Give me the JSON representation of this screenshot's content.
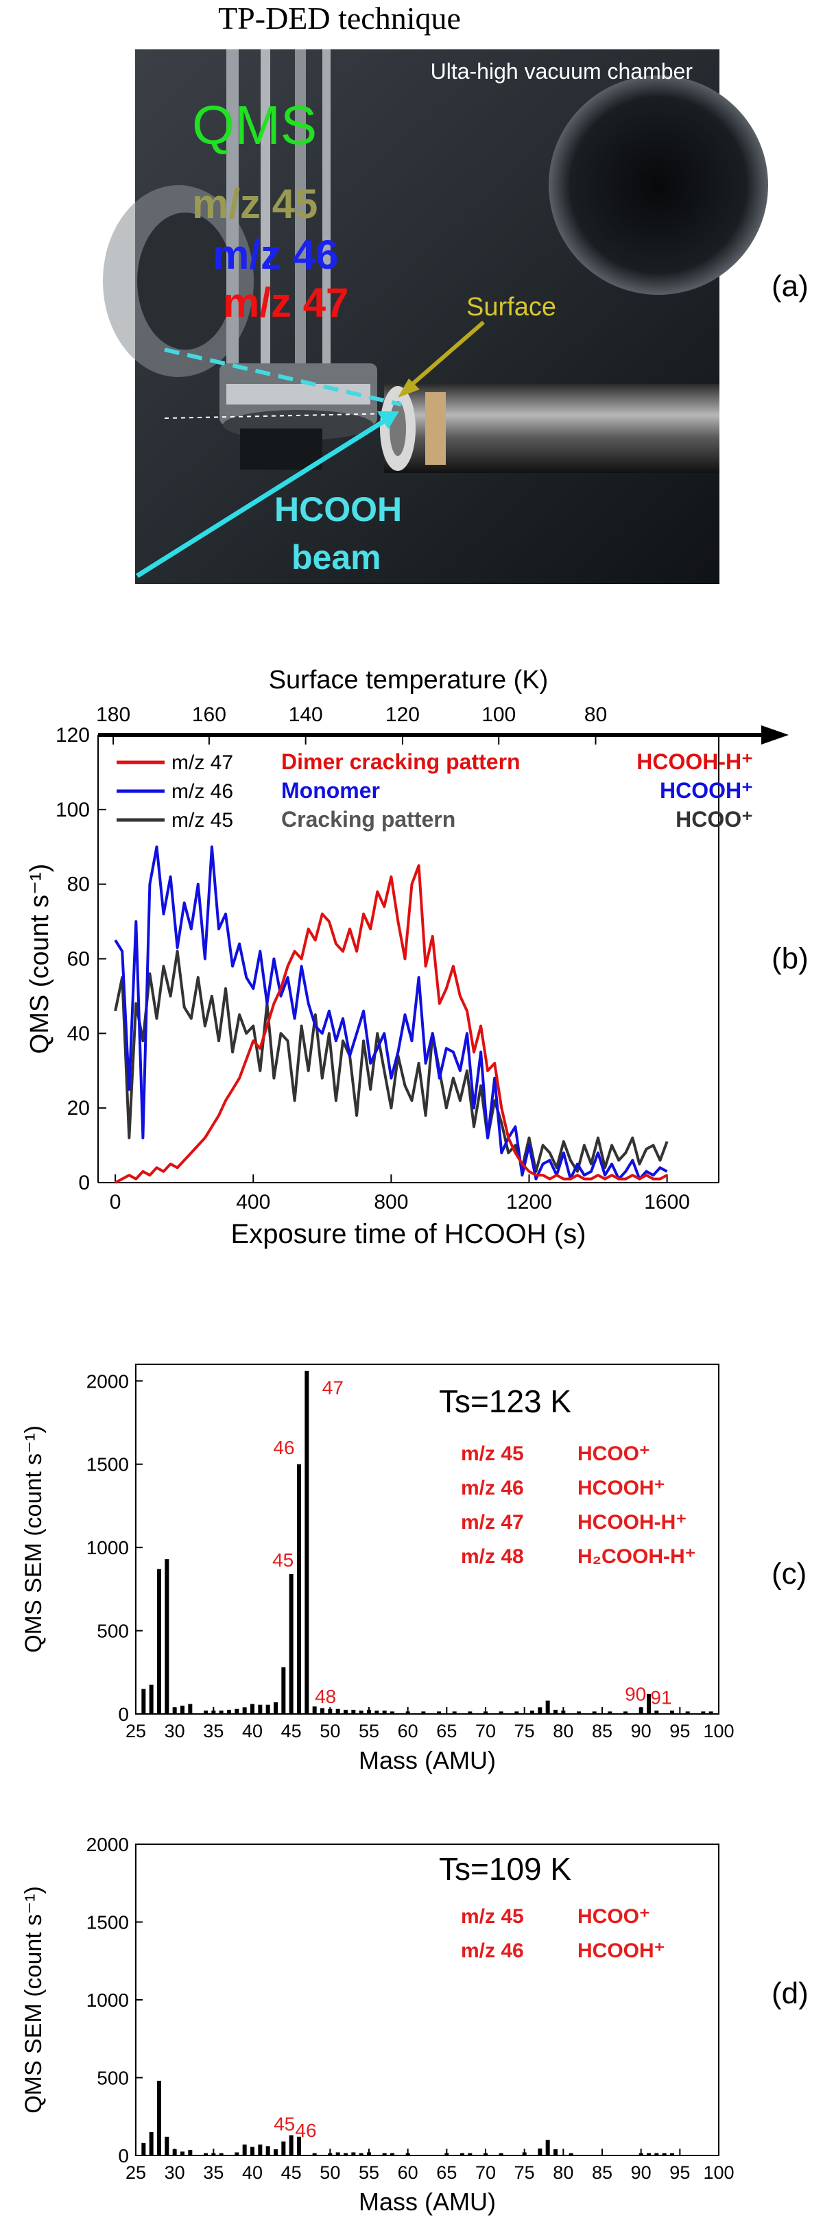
{
  "panel_a": {
    "title": "TP-DED technique",
    "chamber_label": "Ulta-high vacuum chamber",
    "qms_label": "QMS",
    "mz45": "m/z 45",
    "mz46": "m/z 46",
    "mz47": "m/z 47",
    "surface_label": "Surface",
    "beam_line1": "HCOOH",
    "beam_line2": "beam",
    "panel_label": "(a)"
  },
  "chart_data": [
    {
      "id": "b",
      "type": "line",
      "panel_label": "(b)",
      "xlabel": "Exposure time of HCOOH (s)",
      "ylabel": "QMS (count s⁻¹)",
      "top_axis_label": "Surface temperature (K)",
      "xlim": [
        -50,
        1750
      ],
      "ylim": [
        0,
        120
      ],
      "xticks": [
        0,
        400,
        800,
        1200,
        1600
      ],
      "yticks": [
        0,
        20,
        40,
        60,
        80,
        100,
        120
      ],
      "top_ticks": [
        {
          "label": "180",
          "x": -6
        },
        {
          "label": "160",
          "x": 272
        },
        {
          "label": "140",
          "x": 552
        },
        {
          "label": "120",
          "x": 833
        },
        {
          "label": "100",
          "x": 1112
        },
        {
          "label": "80",
          "x": 1393
        }
      ],
      "legend": [
        {
          "line": "m/z 47",
          "desc": "Dimer cracking pattern",
          "ion": "HCOOH-H⁺",
          "color": "#e01010",
          "desc_color": "#e01010",
          "ion_color": "#e01010"
        },
        {
          "line": "m/z 46",
          "desc": "Monomer",
          "ion": "HCOOH⁺",
          "color": "#1010e0",
          "desc_color": "#1010e0",
          "ion_color": "#1010e0"
        },
        {
          "line": "m/z 45",
          "desc": "Cracking pattern",
          "ion": "HCOO⁺",
          "color": "#333333",
          "desc_color": "#555555",
          "ion_color": "#333333"
        }
      ],
      "series": [
        {
          "name": "m/z 45",
          "color": "#333333",
          "x": [
            0,
            20,
            40,
            60,
            80,
            100,
            120,
            140,
            160,
            180,
            200,
            220,
            240,
            260,
            280,
            300,
            320,
            340,
            360,
            380,
            400,
            420,
            440,
            460,
            480,
            500,
            520,
            540,
            560,
            580,
            600,
            620,
            640,
            660,
            680,
            700,
            720,
            740,
            760,
            780,
            800,
            820,
            840,
            860,
            880,
            900,
            920,
            940,
            960,
            980,
            1000,
            1020,
            1040,
            1060,
            1080,
            1100,
            1120,
            1140,
            1160,
            1180,
            1200,
            1220,
            1240,
            1260,
            1280,
            1300,
            1320,
            1340,
            1360,
            1380,
            1400,
            1420,
            1440,
            1460,
            1480,
            1500,
            1520,
            1540,
            1560,
            1580,
            1600
          ],
          "y": [
            46,
            55,
            12,
            48,
            38,
            56,
            44,
            58,
            50,
            62,
            47,
            44,
            55,
            42,
            50,
            38,
            52,
            35,
            45,
            40,
            42,
            30,
            48,
            28,
            40,
            38,
            22,
            42,
            30,
            45,
            28,
            40,
            22,
            38,
            34,
            18,
            38,
            25,
            40,
            30,
            20,
            34,
            26,
            22,
            32,
            18,
            40,
            30,
            20,
            28,
            22,
            30,
            15,
            26,
            12,
            22,
            16,
            8,
            10,
            4,
            12,
            3,
            10,
            8,
            4,
            11,
            6,
            3,
            10,
            5,
            12,
            4,
            10,
            6,
            8,
            12,
            5,
            9,
            10,
            6,
            11
          ]
        },
        {
          "name": "m/z 46",
          "color": "#1010e0",
          "x": [
            0,
            20,
            40,
            60,
            80,
            100,
            120,
            140,
            160,
            180,
            200,
            220,
            240,
            260,
            280,
            300,
            320,
            340,
            360,
            380,
            400,
            420,
            440,
            460,
            480,
            500,
            520,
            540,
            560,
            580,
            600,
            620,
            640,
            660,
            680,
            700,
            720,
            740,
            760,
            780,
            800,
            820,
            840,
            860,
            880,
            900,
            920,
            940,
            960,
            980,
            1000,
            1020,
            1040,
            1060,
            1080,
            1100,
            1120,
            1140,
            1160,
            1180,
            1200,
            1220,
            1240,
            1260,
            1280,
            1300,
            1320,
            1340,
            1360,
            1380,
            1400,
            1420,
            1440,
            1460,
            1480,
            1500,
            1520,
            1540,
            1560,
            1580,
            1600
          ],
          "y": [
            65,
            62,
            25,
            70,
            12,
            80,
            90,
            72,
            82,
            63,
            75,
            68,
            80,
            60,
            90,
            68,
            72,
            58,
            64,
            55,
            52,
            62,
            48,
            60,
            50,
            55,
            44,
            58,
            48,
            42,
            40,
            46,
            38,
            44,
            34,
            40,
            46,
            32,
            36,
            40,
            28,
            35,
            45,
            38,
            55,
            32,
            40,
            28,
            36,
            35,
            30,
            40,
            20,
            35,
            12,
            28,
            8,
            12,
            15,
            2,
            10,
            1,
            5,
            6,
            2,
            8,
            1,
            5,
            2,
            3,
            8,
            2,
            5,
            1,
            3,
            6,
            1,
            3,
            2,
            4,
            3
          ]
        },
        {
          "name": "m/z 47",
          "color": "#e01010",
          "x": [
            0,
            20,
            40,
            60,
            80,
            100,
            120,
            140,
            160,
            180,
            200,
            220,
            240,
            260,
            280,
            300,
            320,
            340,
            360,
            380,
            400,
            420,
            440,
            460,
            480,
            500,
            520,
            540,
            560,
            580,
            600,
            620,
            640,
            660,
            680,
            700,
            720,
            740,
            760,
            780,
            800,
            820,
            840,
            860,
            880,
            900,
            920,
            940,
            960,
            980,
            1000,
            1020,
            1040,
            1060,
            1080,
            1100,
            1120,
            1140,
            1160,
            1180,
            1200,
            1220,
            1240,
            1260,
            1280,
            1300,
            1320,
            1340,
            1360,
            1380,
            1400,
            1420,
            1440,
            1460,
            1480,
            1500,
            1520,
            1540,
            1560,
            1580,
            1600
          ],
          "y": [
            0,
            1,
            2,
            1,
            3,
            2,
            4,
            3,
            5,
            4,
            6,
            8,
            10,
            12,
            15,
            18,
            22,
            25,
            28,
            33,
            38,
            36,
            42,
            48,
            52,
            58,
            62,
            60,
            68,
            65,
            72,
            70,
            64,
            62,
            68,
            62,
            72,
            68,
            78,
            74,
            82,
            70,
            60,
            80,
            85,
            58,
            66,
            48,
            52,
            58,
            50,
            46,
            35,
            42,
            30,
            32,
            20,
            12,
            8,
            5,
            3,
            2,
            2,
            1,
            2,
            1,
            1,
            2,
            1,
            1,
            2,
            1,
            2,
            1,
            1,
            2,
            1,
            2,
            1,
            1,
            2
          ]
        }
      ]
    },
    {
      "id": "c",
      "type": "bar",
      "panel_label": "(c)",
      "title": "Ts=123 K",
      "xlabel": "Mass (AMU)",
      "ylabel": "QMS SEM (count s⁻¹)",
      "xlim": [
        25,
        100
      ],
      "ylim": [
        0,
        2100
      ],
      "xticks": [
        25,
        30,
        35,
        40,
        45,
        50,
        55,
        60,
        65,
        70,
        75,
        80,
        85,
        90,
        95,
        100
      ],
      "yticks": [
        0,
        500,
        1000,
        1500,
        2000
      ],
      "annotations": [
        {
          "text": "45",
          "x": 45
        },
        {
          "text": "46",
          "x": 46
        },
        {
          "text": "47",
          "x": 47
        },
        {
          "text": "48",
          "x": 48
        },
        {
          "text": "90",
          "x": 90
        },
        {
          "text": "91",
          "x": 91
        }
      ],
      "assignments": [
        {
          "mz": "m/z 45",
          "ion": "HCOO⁺"
        },
        {
          "mz": "m/z 46",
          "ion": "HCOOH⁺"
        },
        {
          "mz": "m/z 47",
          "ion": "HCOOH-H⁺"
        },
        {
          "mz": "m/z 48",
          "ion": "H₂COOH-H⁺"
        }
      ],
      "masses": [
        26,
        27,
        28,
        29,
        30,
        31,
        32,
        34,
        35,
        36,
        37,
        38,
        39,
        40,
        41,
        42,
        43,
        44,
        45,
        46,
        47,
        48,
        49,
        50,
        51,
        52,
        53,
        54,
        55,
        56,
        57,
        58,
        60,
        62,
        64,
        66,
        68,
        70,
        72,
        74,
        76,
        77,
        78,
        79,
        80,
        82,
        84,
        86,
        88,
        90,
        91,
        92,
        94,
        96,
        98,
        99
      ],
      "values": [
        150,
        175,
        870,
        930,
        40,
        50,
        60,
        20,
        20,
        20,
        25,
        30,
        40,
        60,
        55,
        55,
        70,
        280,
        840,
        1500,
        2060,
        45,
        35,
        30,
        30,
        25,
        25,
        20,
        25,
        20,
        20,
        15,
        15,
        15,
        15,
        15,
        15,
        15,
        15,
        15,
        20,
        40,
        80,
        25,
        20,
        15,
        15,
        15,
        15,
        40,
        120,
        20,
        20,
        15,
        15,
        15
      ]
    },
    {
      "id": "d",
      "type": "bar",
      "panel_label": "(d)",
      "title": "Ts=109 K",
      "xlabel": "Mass (AMU)",
      "ylabel": "QMS SEM (count s⁻¹)",
      "xlim": [
        25,
        100
      ],
      "ylim": [
        0,
        2000
      ],
      "xticks": [
        25,
        30,
        35,
        40,
        45,
        50,
        55,
        60,
        65,
        70,
        75,
        80,
        85,
        90,
        95,
        100
      ],
      "yticks": [
        0,
        500,
        1000,
        1500,
        2000
      ],
      "annotations": [
        {
          "text": "45",
          "x": 45
        },
        {
          "text": "46",
          "x": 46
        }
      ],
      "assignments": [
        {
          "mz": "m/z 45",
          "ion": "HCOO⁺"
        },
        {
          "mz": "m/z 46",
          "ion": "HCOOH⁺"
        }
      ],
      "masses": [
        26,
        27,
        28,
        29,
        30,
        31,
        32,
        34,
        35,
        36,
        38,
        39,
        40,
        41,
        42,
        43,
        44,
        45,
        46,
        48,
        50,
        51,
        52,
        53,
        54,
        55,
        57,
        58,
        60,
        65,
        67,
        68,
        70,
        72,
        75,
        77,
        78,
        79,
        81,
        90,
        91,
        92,
        93,
        94
      ],
      "values": [
        80,
        150,
        480,
        120,
        40,
        25,
        35,
        15,
        15,
        15,
        20,
        70,
        55,
        70,
        60,
        40,
        90,
        130,
        120,
        15,
        15,
        20,
        15,
        20,
        15,
        20,
        15,
        15,
        15,
        15,
        15,
        15,
        15,
        15,
        20,
        45,
        100,
        40,
        15,
        15,
        15,
        15,
        15,
        15
      ]
    }
  ]
}
